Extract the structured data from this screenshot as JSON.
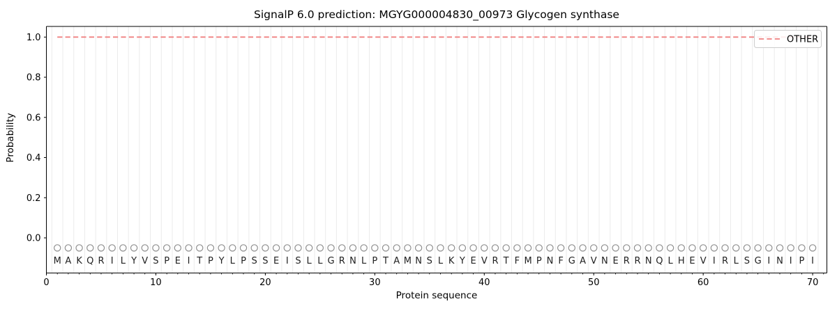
{
  "chart_data": {
    "type": "line",
    "title": "SignalP 6.0 prediction: MGYG000004830_00973 Glycogen synthase",
    "xlabel": "Protein sequence",
    "ylabel": "Probability",
    "xlim": [
      0,
      71.3
    ],
    "ylim": [
      -0.175,
      1.053
    ],
    "x_ticks": [
      0,
      10,
      20,
      30,
      40,
      50,
      60,
      70
    ],
    "x_minor_tick_step": 1,
    "y_ticks": [
      0.0,
      0.2,
      0.4,
      0.6,
      0.8,
      1.0
    ],
    "grid": {
      "vertical_at_half_positions": true,
      "color": "#ebebeb"
    },
    "legend": {
      "label": "OTHER",
      "position": "upper right",
      "border_color": "#cccccc"
    },
    "series": [
      {
        "name": "OTHER",
        "color": "#f08080",
        "linestyle": "dashed",
        "x_start": 1,
        "x_end": 70,
        "y_constant": 1.0
      }
    ],
    "sequence": {
      "residues": "MAKQRILYVSPEITPYLPSSEISLLGRNLPTAMNSLKYEVRTFMPNFGAVNERRNQLHEVIRLSGINIPI",
      "length": 70,
      "marker": "open-circle",
      "marker_y": -0.05,
      "letter_y": -0.113,
      "marker_color": "#8f8f8f",
      "letter_color": "#212121"
    },
    "axis_color": "#000000",
    "background": "#ffffff"
  }
}
